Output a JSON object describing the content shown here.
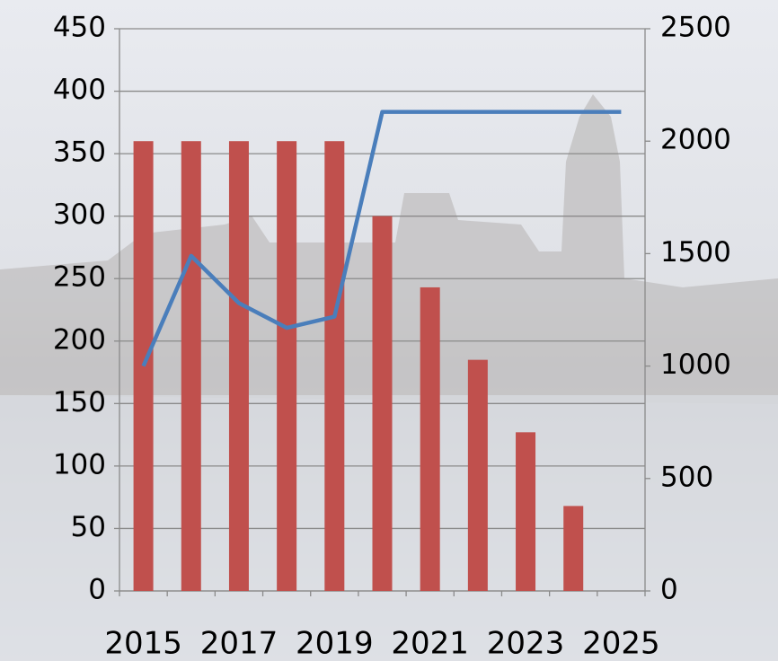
{
  "chart_data": {
    "type": "bar",
    "categories": [
      "2015",
      null,
      "2017",
      null,
      "2019",
      null,
      "2021",
      null,
      "2023",
      null,
      "2025"
    ],
    "series": [
      {
        "type": "bar",
        "color": "#c0504d",
        "values": [
          360,
          360,
          360,
          360,
          360,
          300,
          243,
          185,
          127,
          68,
          null
        ]
      },
      {
        "type": "line",
        "axis": "y2",
        "color": "#4a7ebb",
        "values": [
          1000,
          1490,
          1280,
          1170,
          1220,
          2130,
          2130,
          2130,
          2130,
          2130,
          2130
        ]
      }
    ],
    "ylim": [
      0,
      450
    ],
    "yticks": [
      0,
      50,
      100,
      150,
      200,
      250,
      300,
      350,
      400,
      450
    ],
    "y2lim": [
      0,
      2500
    ],
    "y2ticks": [
      0,
      500,
      1000,
      1500,
      2000,
      2500
    ],
    "grid": true
  }
}
